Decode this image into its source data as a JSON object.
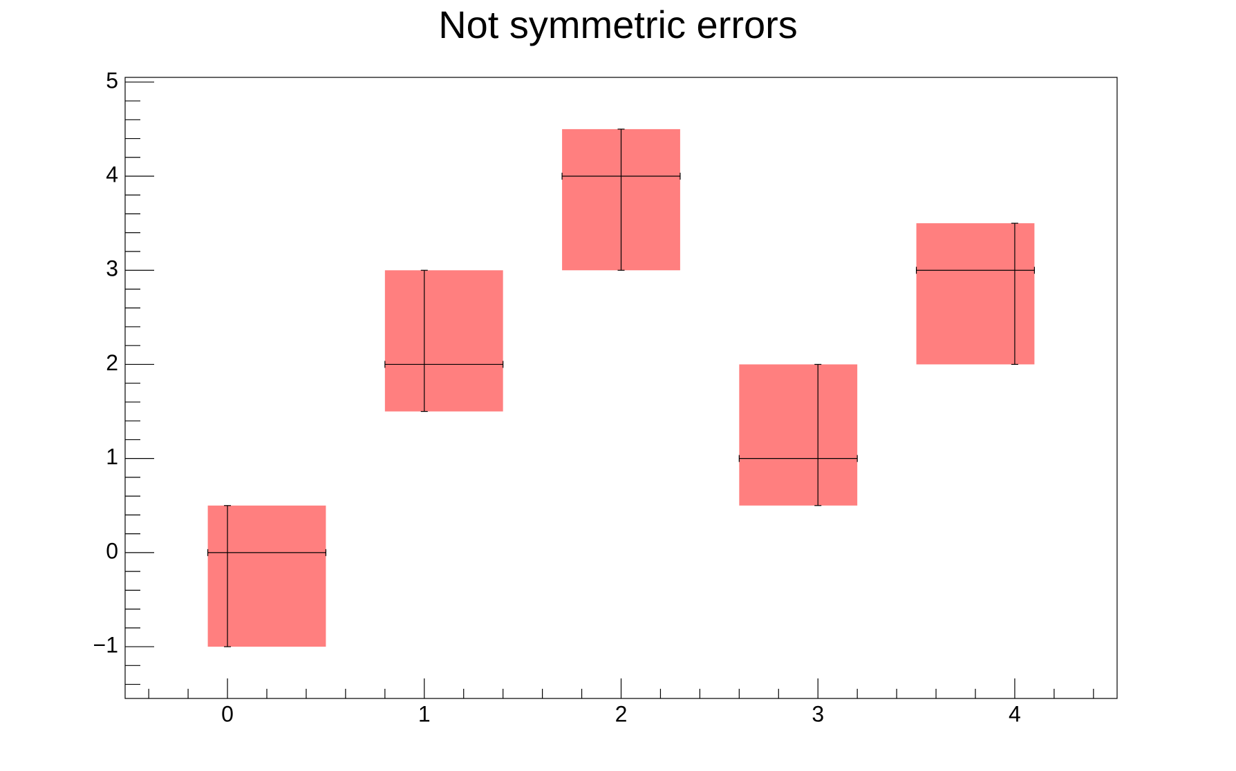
{
  "chart_data": {
    "type": "errorbox",
    "title": "Not symmetric errors",
    "x": [
      0,
      1,
      2,
      3,
      4
    ],
    "values": [
      0,
      2,
      4,
      1,
      3
    ],
    "ex_low": [
      0.1,
      0.2,
      0.3,
      0.4,
      0.5
    ],
    "ex_high": [
      0.5,
      0.4,
      0.3,
      0.2,
      0.1
    ],
    "ey_low": [
      1,
      0.5,
      1,
      0.5,
      1
    ],
    "ey_high": [
      0.5,
      1,
      0.5,
      1,
      0.5
    ],
    "color": "#ff7f7f",
    "xlim": [
      -0.52,
      4.52
    ],
    "xticks": [
      0,
      1,
      2,
      3,
      4
    ],
    "ylim": [
      -1.55,
      5.05
    ],
    "yticks": [
      {
        "value": -1,
        "label": "−1"
      },
      0,
      1,
      2,
      3,
      4,
      5
    ]
  }
}
